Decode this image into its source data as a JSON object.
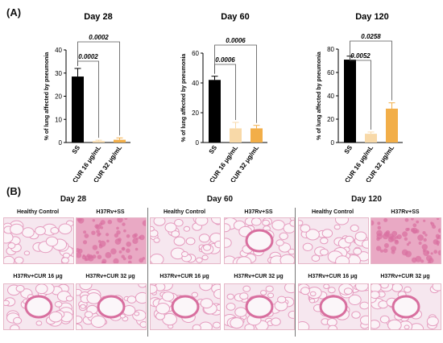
{
  "panel_a_label": "(A)",
  "panel_b_label": "(B)",
  "colors": {
    "ss": "#000000",
    "cur16": "#f8d9a8",
    "cur32": "#f2ae48",
    "bracket": "#555555",
    "tissue_bg": "#f6e7ef",
    "tissue_wall": "#e59cbf",
    "tissue_dense": "#d86f9f"
  },
  "chart_data": [
    {
      "type": "bar",
      "title": "Day 28",
      "ylabel": "% of lung affected by pneumonia",
      "categories": [
        "SS",
        "CUR 16 μg/mL",
        "CUR 32 μg/mL"
      ],
      "values": [
        28.5,
        0.6,
        1.2
      ],
      "errors": [
        3.5,
        0.4,
        0.8
      ],
      "ylim": [
        0,
        40
      ],
      "yticks": [
        "0",
        "10",
        "20",
        "30",
        "40"
      ],
      "comparisons": [
        {
          "from": 0,
          "to": 1,
          "label": "0.0002"
        },
        {
          "from": 0,
          "to": 2,
          "label": "0.0002"
        }
      ]
    },
    {
      "type": "bar",
      "title": "Day 60",
      "ylabel": "% of lung affected by pneumonia",
      "categories": [
        "SS",
        "CUR 16 μg/mL",
        "CUR 32 μg/mL"
      ],
      "values": [
        42,
        9.5,
        9.5
      ],
      "errors": [
        2.5,
        4,
        2
      ],
      "ylim": [
        0,
        60
      ],
      "yticks": [
        "0",
        "20",
        "40",
        "60"
      ],
      "comparisons": [
        {
          "from": 0,
          "to": 1,
          "label": "0.0006"
        },
        {
          "from": 0,
          "to": 2,
          "label": "0.0006"
        }
      ]
    },
    {
      "type": "bar",
      "title": "Day 120",
      "ylabel": "% of lung affected by pneumonia",
      "categories": [
        "SS",
        "CUR 16 μg/mL",
        "CUR 32 μg/mL"
      ],
      "values": [
        71,
        7.5,
        29
      ],
      "errors": [
        3,
        1.5,
        5
      ],
      "ylim": [
        0,
        80
      ],
      "yticks": [
        "0",
        "20",
        "40",
        "60",
        "80"
      ],
      "comparisons": [
        {
          "from": 0,
          "to": 1,
          "label": "0.0052"
        },
        {
          "from": 0,
          "to": 2,
          "label": "0.0258"
        }
      ]
    }
  ],
  "histology": {
    "groups": [
      {
        "day": "Day 28",
        "labels": [
          "Healthy Control",
          "H37Rv+SS",
          "H37Rv+CUR 16 μg",
          "H37Rv+CUR 32 μg"
        ]
      },
      {
        "day": "Day 60",
        "labels": [
          "Healthy Control",
          "H37Rv+SS",
          "H37Rv+CUR 16 μg",
          "H37Rv+CUR 32 μg"
        ]
      },
      {
        "day": "Day 120",
        "labels": [
          "Healthy Control",
          "H37Rv+SS",
          "H37Rv+CUR 16 μg",
          "H37Rv+CUR 32 μg"
        ]
      }
    ]
  }
}
